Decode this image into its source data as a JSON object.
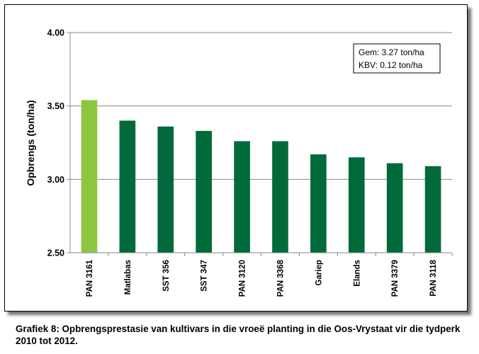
{
  "chart_data": {
    "type": "bar",
    "title": "",
    "xlabel": "",
    "ylabel": "Opbrengs (ton/ha)",
    "ylim": [
      2.5,
      4.0
    ],
    "yticks": [
      "2.50",
      "3.00",
      "3.50",
      "4.00"
    ],
    "grid": true,
    "categories": [
      "PAN 3161",
      "Matlabas",
      "SST 356",
      "SST 347",
      "PAN 3120",
      "PAN 3368",
      "Gariep",
      "Elands",
      "PAN 3379",
      "PAN 3118"
    ],
    "values": [
      3.54,
      3.4,
      3.36,
      3.33,
      3.26,
      3.26,
      3.17,
      3.15,
      3.11,
      3.09
    ],
    "colors": [
      "#8dc63f",
      "#006a3a",
      "#006a3a",
      "#006a3a",
      "#006a3a",
      "#006a3a",
      "#006a3a",
      "#006a3a",
      "#006a3a",
      "#006a3a"
    ],
    "legend_box": {
      "position": "top-right",
      "line1": "Gem:  3.27 ton/ha",
      "line2": "KBV:  0.12 ton/ha"
    }
  },
  "caption": "Grafiek 8: Opbrengsprestasie van kultivars in die vroeë planting in die Oos-Vrystaat vir die tydperk 2010 tot 2012."
}
